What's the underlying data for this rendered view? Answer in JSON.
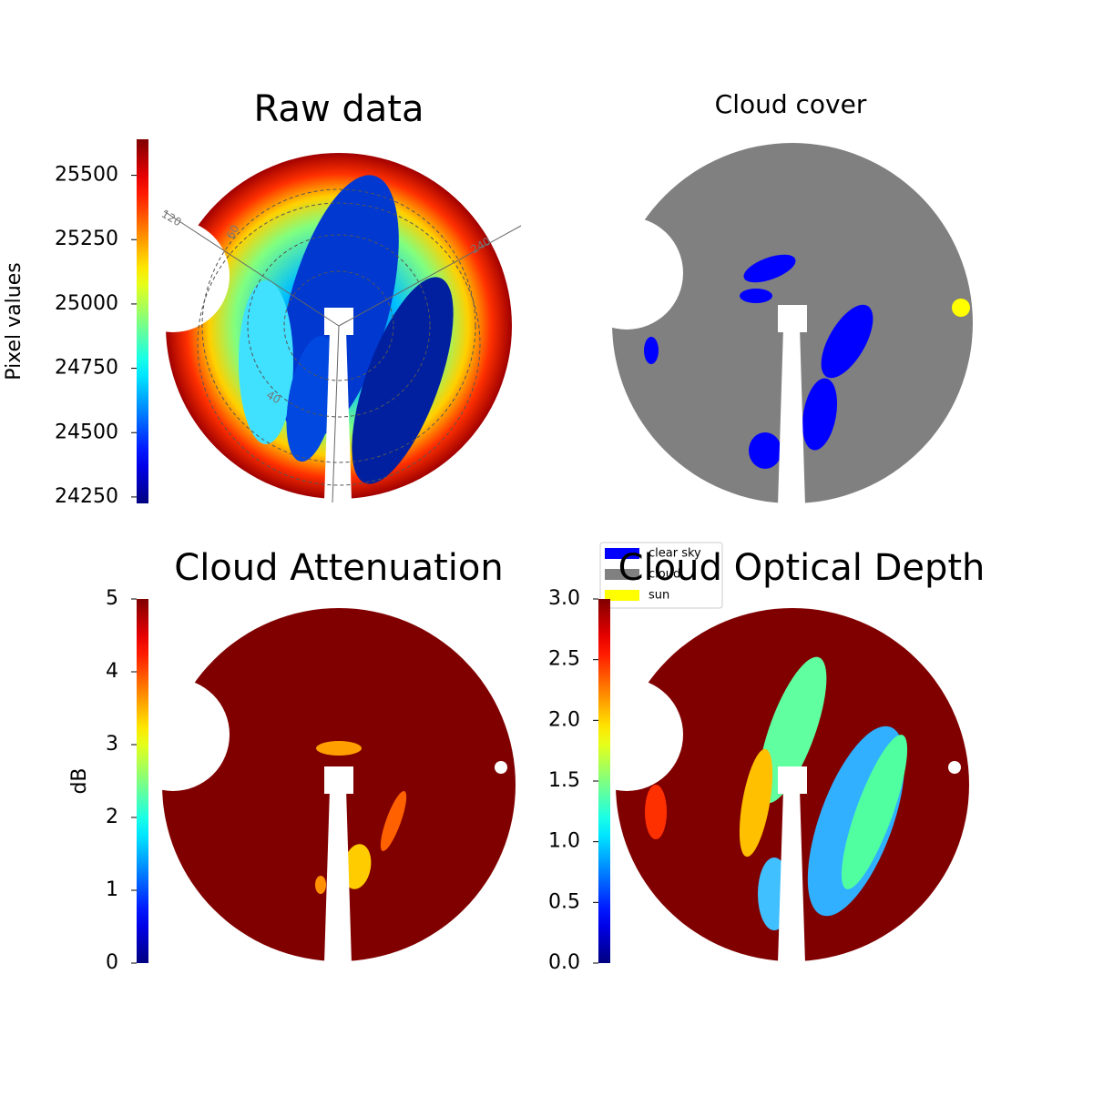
{
  "chart_data": [
    {
      "type": "image",
      "title": "Raw data",
      "colormap": "jet",
      "colorbar": {
        "label": "Pixel values",
        "lim": [
          24225,
          25640
        ],
        "ticks": [
          24250,
          24500,
          24750,
          25000,
          25250,
          25500
        ]
      },
      "annotations": [
        "120",
        "60",
        "240",
        "40"
      ]
    },
    {
      "type": "image",
      "title": "Cloud cover",
      "legend": [
        {
          "name": "clear sky",
          "color": "#0000ff"
        },
        {
          "name": "cloud",
          "color": "#808080"
        },
        {
          "name": "sun",
          "color": "#ffff00"
        }
      ]
    },
    {
      "type": "image",
      "title": "Cloud Attenuation",
      "colormap": "jet",
      "colorbar": {
        "label": "dB",
        "lim": [
          0,
          5
        ],
        "ticks": [
          0,
          1,
          2,
          3,
          4,
          5
        ]
      }
    },
    {
      "type": "image",
      "title": "Cloud Optical Depth",
      "colormap": "jet",
      "colorbar": {
        "lim": [
          0,
          3
        ],
        "ticks": [
          {
            "value": 0,
            "label": "0.0"
          },
          {
            "value": 0.5,
            "label": "0.5"
          },
          {
            "value": 1,
            "label": "1.0"
          },
          {
            "value": 1.5,
            "label": "1.5"
          },
          {
            "value": 2,
            "label": "2.0"
          },
          {
            "value": 2.5,
            "label": "2.5"
          },
          {
            "value": 3,
            "label": "3.0"
          }
        ]
      }
    }
  ]
}
